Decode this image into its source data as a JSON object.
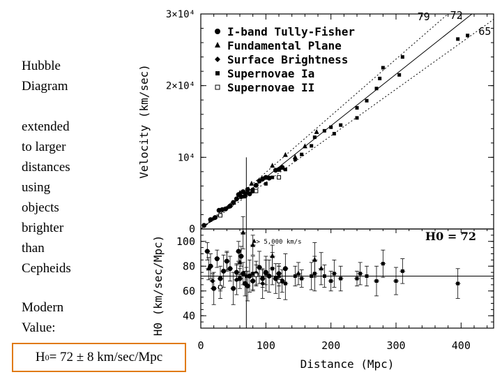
{
  "sidebar": {
    "title_line1": "Hubble",
    "title_line2": "Diagram",
    "desc_lines": [
      "extended",
      "to larger",
      "distances",
      "using",
      "objects",
      "brighter",
      "than",
      "Cepheids"
    ],
    "modern_line1": "Modern",
    "modern_line2": "Value:",
    "answer": {
      "h": "H",
      "sub": "0",
      "rest": " = 72 ± 8 km/sec/Mpc"
    }
  },
  "colors": {
    "accent_box": "#e07a10",
    "ink": "#000000"
  },
  "chart_data": [
    {
      "type": "scatter",
      "title": "",
      "ylabel": "Velocity (km/sec)",
      "xlabel": "",
      "xlim": [
        0,
        450
      ],
      "ylim": [
        0,
        30000
      ],
      "yticks": [
        {
          "value": 0,
          "label": "0"
        },
        {
          "value": 10000,
          "label": "10⁴"
        },
        {
          "value": 20000,
          "label": "2×10⁴"
        },
        {
          "value": 30000,
          "label": "3×10⁴"
        }
      ],
      "legend": {
        "placement": "top-left",
        "items": [
          {
            "marker": "circle",
            "label": "I-band Tully-Fisher"
          },
          {
            "marker": "triangle",
            "label": "Fundamental Plane"
          },
          {
            "marker": "diamond",
            "label": "Surface Brightness"
          },
          {
            "marker": "square",
            "label": "Supernovae Ia"
          },
          {
            "marker": "open-square",
            "label": "Supernovae II"
          }
        ]
      },
      "fit_lines": [
        {
          "h0": 79,
          "label": "79",
          "style": "dotted"
        },
        {
          "h0": 72,
          "label": "72",
          "style": "solid"
        },
        {
          "h0": 65,
          "label": "65",
          "style": "dotted"
        }
      ],
      "marker_line_x": 70,
      "series": [
        {
          "name": "I-band Tully-Fisher",
          "marker": "circle",
          "points": [
            [
              5,
              500
            ],
            [
              15,
              1300
            ],
            [
              22,
              1600
            ],
            [
              28,
              2600
            ],
            [
              33,
              2700
            ],
            [
              38,
              2800
            ],
            [
              45,
              3200
            ],
            [
              50,
              3700
            ],
            [
              55,
              4200
            ],
            [
              58,
              4800
            ],
            [
              62,
              4500
            ],
            [
              65,
              5200
            ],
            [
              68,
              4600
            ],
            [
              72,
              5500
            ],
            [
              75,
              4900
            ],
            [
              80,
              5300
            ],
            [
              85,
              6100
            ],
            [
              90,
              6700
            ],
            [
              95,
              7000
            ],
            [
              100,
              7200
            ],
            [
              105,
              7100
            ],
            [
              115,
              8200
            ],
            [
              120,
              8300
            ],
            [
              125,
              8600
            ]
          ]
        },
        {
          "name": "Fundamental Plane",
          "marker": "triangle",
          "points": [
            [
              60,
              5000
            ],
            [
              78,
              6300
            ],
            [
              110,
              8800
            ],
            [
              130,
              10300
            ],
            [
              145,
              10000
            ],
            [
              160,
              11500
            ],
            [
              178,
              13500
            ]
          ]
        },
        {
          "name": "Surface Brightness",
          "marker": "diamond",
          "points": [
            [
              20,
              1500
            ],
            [
              40,
              2900
            ],
            [
              50,
              3600
            ],
            [
              70,
              5000
            ],
            [
              95,
              6900
            ]
          ]
        },
        {
          "name": "Supernovae Ia",
          "marker": "square",
          "points": [
            [
              80,
              5500
            ],
            [
              100,
              6300
            ],
            [
              110,
              7200
            ],
            [
              130,
              8300
            ],
            [
              145,
              9700
            ],
            [
              155,
              10400
            ],
            [
              170,
              11600
            ],
            [
              175,
              12800
            ],
            [
              190,
              13700
            ],
            [
              200,
              14200
            ],
            [
              205,
              13300
            ],
            [
              215,
              14500
            ],
            [
              240,
              16900
            ],
            [
              240,
              15500
            ],
            [
              255,
              17900
            ],
            [
              270,
              19600
            ],
            [
              275,
              21000
            ],
            [
              280,
              22500
            ],
            [
              305,
              21500
            ],
            [
              310,
              24000
            ],
            [
              395,
              26500
            ],
            [
              410,
              27000
            ]
          ]
        },
        {
          "name": "Supernovae II",
          "marker": "open-square",
          "points": [
            [
              30,
              1900
            ],
            [
              85,
              5300
            ],
            [
              120,
              7200
            ]
          ]
        }
      ]
    },
    {
      "type": "scatter",
      "title": "",
      "ylabel": "H0 (km/sec/Mpc)",
      "xlabel": "Distance (Mpc)",
      "xlim": [
        0,
        450
      ],
      "ylim": [
        30,
        110
      ],
      "yticks": [
        {
          "value": 40,
          "label": "40"
        },
        {
          "value": 60,
          "label": "60"
        },
        {
          "value": 80,
          "label": "80"
        },
        {
          "value": 100,
          "label": "100"
        }
      ],
      "xticks": [
        {
          "value": 0,
          "label": "0"
        },
        {
          "value": 100,
          "label": "100"
        },
        {
          "value": 200,
          "label": "200"
        },
        {
          "value": 300,
          "label": "300"
        },
        {
          "value": 400,
          "label": "400"
        }
      ],
      "annotation_arrow": "> 5,000 km/s",
      "annotation_value": "H0 = 72",
      "reference_line": 72,
      "marker_line_x": 70,
      "series": [
        {
          "name": "I-band Tully-Fisher",
          "marker": "circle",
          "points": [
            [
              10,
              92
            ],
            [
              15,
              80
            ],
            [
              20,
              62
            ],
            [
              25,
              86
            ],
            [
              30,
              70
            ],
            [
              35,
              76
            ],
            [
              40,
              84
            ],
            [
              45,
              78
            ],
            [
              50,
              62
            ],
            [
              55,
              75
            ],
            [
              58,
              92
            ],
            [
              60,
              70
            ],
            [
              62,
              88
            ],
            [
              65,
              74
            ],
            [
              68,
              66
            ],
            [
              72,
              64
            ],
            [
              75,
              72
            ],
            [
              80,
              68
            ],
            [
              85,
              74
            ],
            [
              90,
              79
            ],
            [
              95,
              70
            ],
            [
              100,
              75
            ],
            [
              105,
              72
            ],
            [
              115,
              70
            ],
            [
              120,
              74
            ],
            [
              125,
              68
            ],
            [
              130,
              78
            ]
          ]
        },
        {
          "name": "Fundamental Plane",
          "marker": "triangle",
          "points": [
            [
              12,
              78
            ],
            [
              60,
              83
            ],
            [
              65,
              107
            ],
            [
              80,
              97
            ],
            [
              110,
              88
            ],
            [
              120,
              72
            ],
            [
              150,
              74
            ],
            [
              175,
              85
            ],
            [
              185,
              78
            ]
          ]
        },
        {
          "name": "Surface Brightness",
          "marker": "diamond",
          "points": [
            [
              18,
              68
            ],
            [
              40,
              84
            ],
            [
              55,
              69
            ],
            [
              70,
              72
            ],
            [
              95,
              66
            ]
          ]
        },
        {
          "name": "Supernovae Ia",
          "marker": "square",
          "points": [
            [
              80,
              74
            ],
            [
              100,
              74
            ],
            [
              110,
              78
            ],
            [
              130,
              66
            ],
            [
              145,
              72
            ],
            [
              155,
              70
            ],
            [
              170,
              72
            ],
            [
              175,
              74
            ],
            [
              190,
              72
            ],
            [
              200,
              68
            ],
            [
              205,
              74
            ],
            [
              215,
              70
            ],
            [
              240,
              70
            ],
            [
              245,
              74
            ],
            [
              255,
              72
            ],
            [
              270,
              68
            ],
            [
              280,
              82
            ],
            [
              300,
              68
            ],
            [
              310,
              76
            ],
            [
              395,
              66
            ]
          ]
        },
        {
          "name": "Supernovae II",
          "marker": "open-square",
          "points": [
            [
              30,
              63
            ],
            [
              85,
              73
            ],
            [
              120,
              68
            ]
          ]
        }
      ]
    }
  ]
}
